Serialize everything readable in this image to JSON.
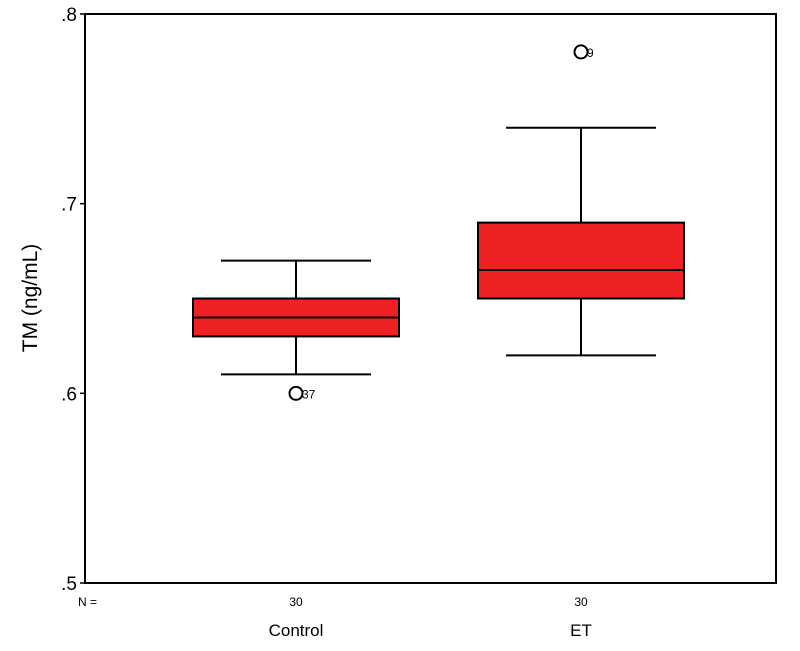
{
  "chart_data": {
    "type": "boxplot",
    "title": "",
    "xlabel": "",
    "ylabel": "TM (ng/mL)",
    "ylim": [
      0.5,
      0.8
    ],
    "yticks": [
      0.5,
      0.6,
      0.7,
      0.8
    ],
    "ytick_labels": [
      ".5",
      ".6",
      ".7",
      ".8"
    ],
    "n_label": "N =",
    "box_color": "#ee2224",
    "categories": [
      "Control",
      "ET"
    ],
    "series": [
      {
        "name": "Control",
        "n": "30",
        "whisker_low": 0.61,
        "q1": 0.63,
        "median": 0.64,
        "q3": 0.65,
        "whisker_high": 0.67,
        "outliers": [
          {
            "value": 0.6,
            "label": "37"
          }
        ]
      },
      {
        "name": "ET",
        "n": "30",
        "whisker_low": 0.62,
        "q1": 0.65,
        "median": 0.665,
        "q3": 0.69,
        "whisker_high": 0.74,
        "outliers": [
          {
            "value": 0.78,
            "label": "9"
          }
        ]
      }
    ]
  }
}
